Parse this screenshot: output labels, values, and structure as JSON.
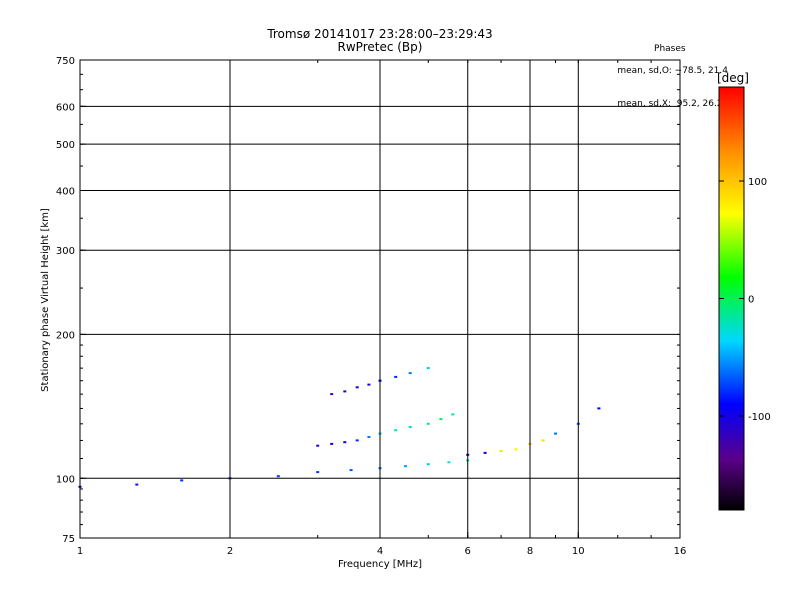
{
  "chart_data": {
    "type": "scatter",
    "title": "Tromsø 20141017 23:28:00–23:29:43",
    "subtitle": "RwPretec (Bp)",
    "xlabel": "Frequency [MHz]",
    "ylabel": "Stationary phase Virtual Height [km]",
    "x_scale": "log",
    "y_scale": "log",
    "xlim": [
      1,
      16
    ],
    "ylim": [
      75,
      750
    ],
    "x_ticks": [
      1,
      2,
      4,
      6,
      8,
      10,
      16
    ],
    "x_tick_labels": [
      "1",
      "2",
      "4",
      "6",
      "8",
      "10",
      "16"
    ],
    "y_ticks": [
      75,
      100,
      200,
      300,
      400,
      500,
      600,
      750
    ],
    "y_tick_labels": [
      "75",
      "100",
      "200",
      "300",
      "400",
      "500",
      "600",
      "750"
    ],
    "grid": true,
    "colorbar": {
      "label": "[deg]",
      "range": [
        -180,
        180
      ],
      "ticks": [
        100,
        0,
        -100
      ],
      "tick_labels": [
        "100",
        "0",
        "-100"
      ]
    },
    "phases_box": {
      "title": "Phases",
      "line_o": "mean, sd,O: −78.5, 21.4",
      "line_x": "mean, sd,X:  95.2, 26.2"
    },
    "traces": [
      {
        "name": "",
        "x": [
          1.0,
          1.3,
          1.6,
          2.0,
          2.5,
          3.0,
          3.5,
          4.0,
          4.5,
          5.0,
          5.5,
          6.0
        ],
        "y": [
          96,
          97,
          99,
          100,
          101,
          103,
          104,
          105,
          106,
          107,
          108,
          109
        ],
        "phase": [
          -90,
          -85,
          -80,
          -80,
          -75,
          -75,
          -70,
          -60,
          -50,
          -40,
          -30,
          -20
        ]
      },
      {
        "name": "",
        "x": [
          3.0,
          3.2,
          3.4,
          3.6,
          3.8,
          4.0,
          4.3,
          4.6,
          5.0,
          5.3,
          5.6
        ],
        "y": [
          117,
          118,
          119,
          120,
          122,
          124,
          126,
          128,
          130,
          133,
          136
        ],
        "phase": [
          -110,
          -100,
          -90,
          -80,
          -60,
          -40,
          -20,
          -30,
          -10,
          0,
          -20
        ]
      },
      {
        "name": "",
        "x": [
          3.2,
          3.4,
          3.6,
          3.8,
          4.0,
          4.3,
          4.6,
          5.0
        ],
        "y": [
          150,
          152,
          155,
          157,
          160,
          163,
          166,
          170
        ],
        "phase": [
          -120,
          -115,
          -110,
          -100,
          -90,
          -80,
          -60,
          -40
        ]
      },
      {
        "name": "",
        "x": [
          6.0,
          6.5,
          7.0,
          7.5,
          8.0,
          8.5,
          9.0,
          10.0,
          11.0
        ],
        "y": [
          112,
          113,
          114,
          115,
          118,
          120,
          124,
          130,
          140
        ],
        "phase": [
          -110,
          -100,
          60,
          80,
          100,
          90,
          -60,
          -70,
          -90
        ]
      }
    ]
  }
}
